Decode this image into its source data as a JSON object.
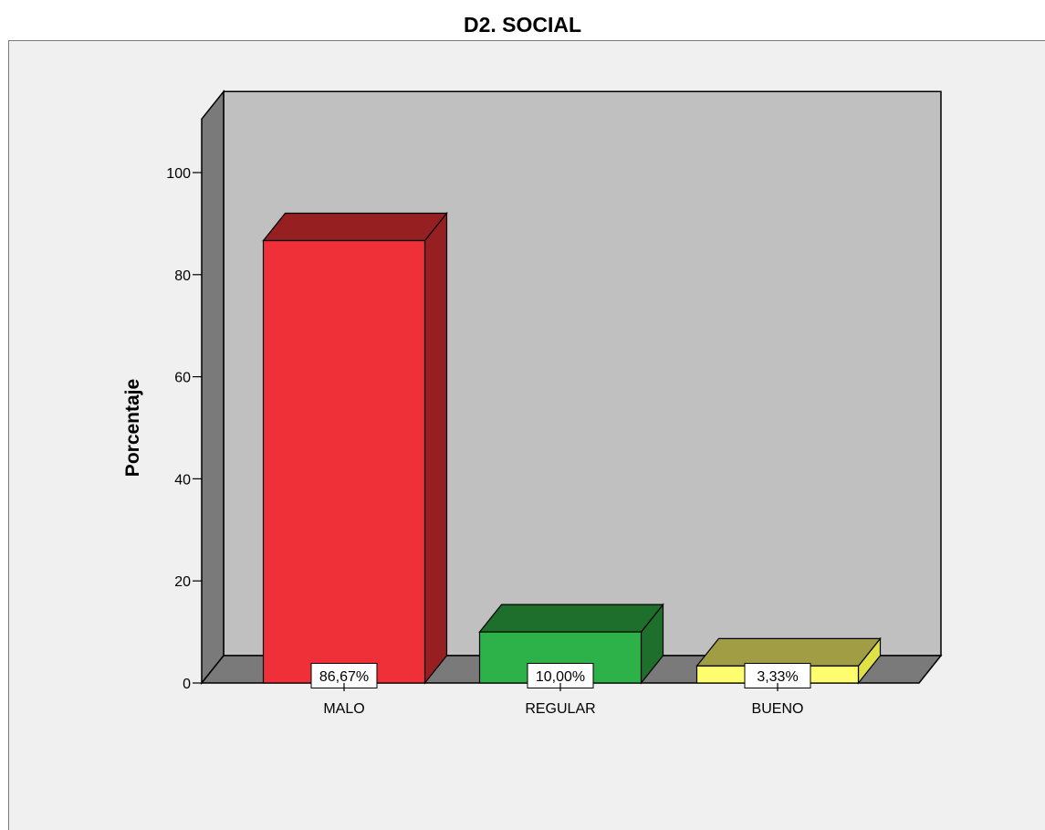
{
  "chart_data": {
    "type": "bar",
    "title": "D2. SOCIAL",
    "xlabel": "",
    "ylabel": "Porcentaje",
    "ylim": [
      0,
      100
    ],
    "yticks": [
      "0",
      "20",
      "40",
      "60",
      "80",
      "100"
    ],
    "categories": [
      "MALO",
      "REGULAR",
      "BUENO"
    ],
    "values": [
      86.67,
      10.0,
      3.33
    ],
    "data_labels": [
      "86,67%",
      "10,00%",
      "3,33%"
    ],
    "colors": [
      "#ef3038",
      "#2db24a",
      "#fdfd6e"
    ],
    "side_colors": [
      "#951f21",
      "#1e6e2c",
      "#e0e047"
    ],
    "top_colors": [
      "#951f21",
      "#1e6e2c",
      "#a09d44"
    ],
    "style": "3d",
    "grid": false,
    "legend": "none"
  }
}
